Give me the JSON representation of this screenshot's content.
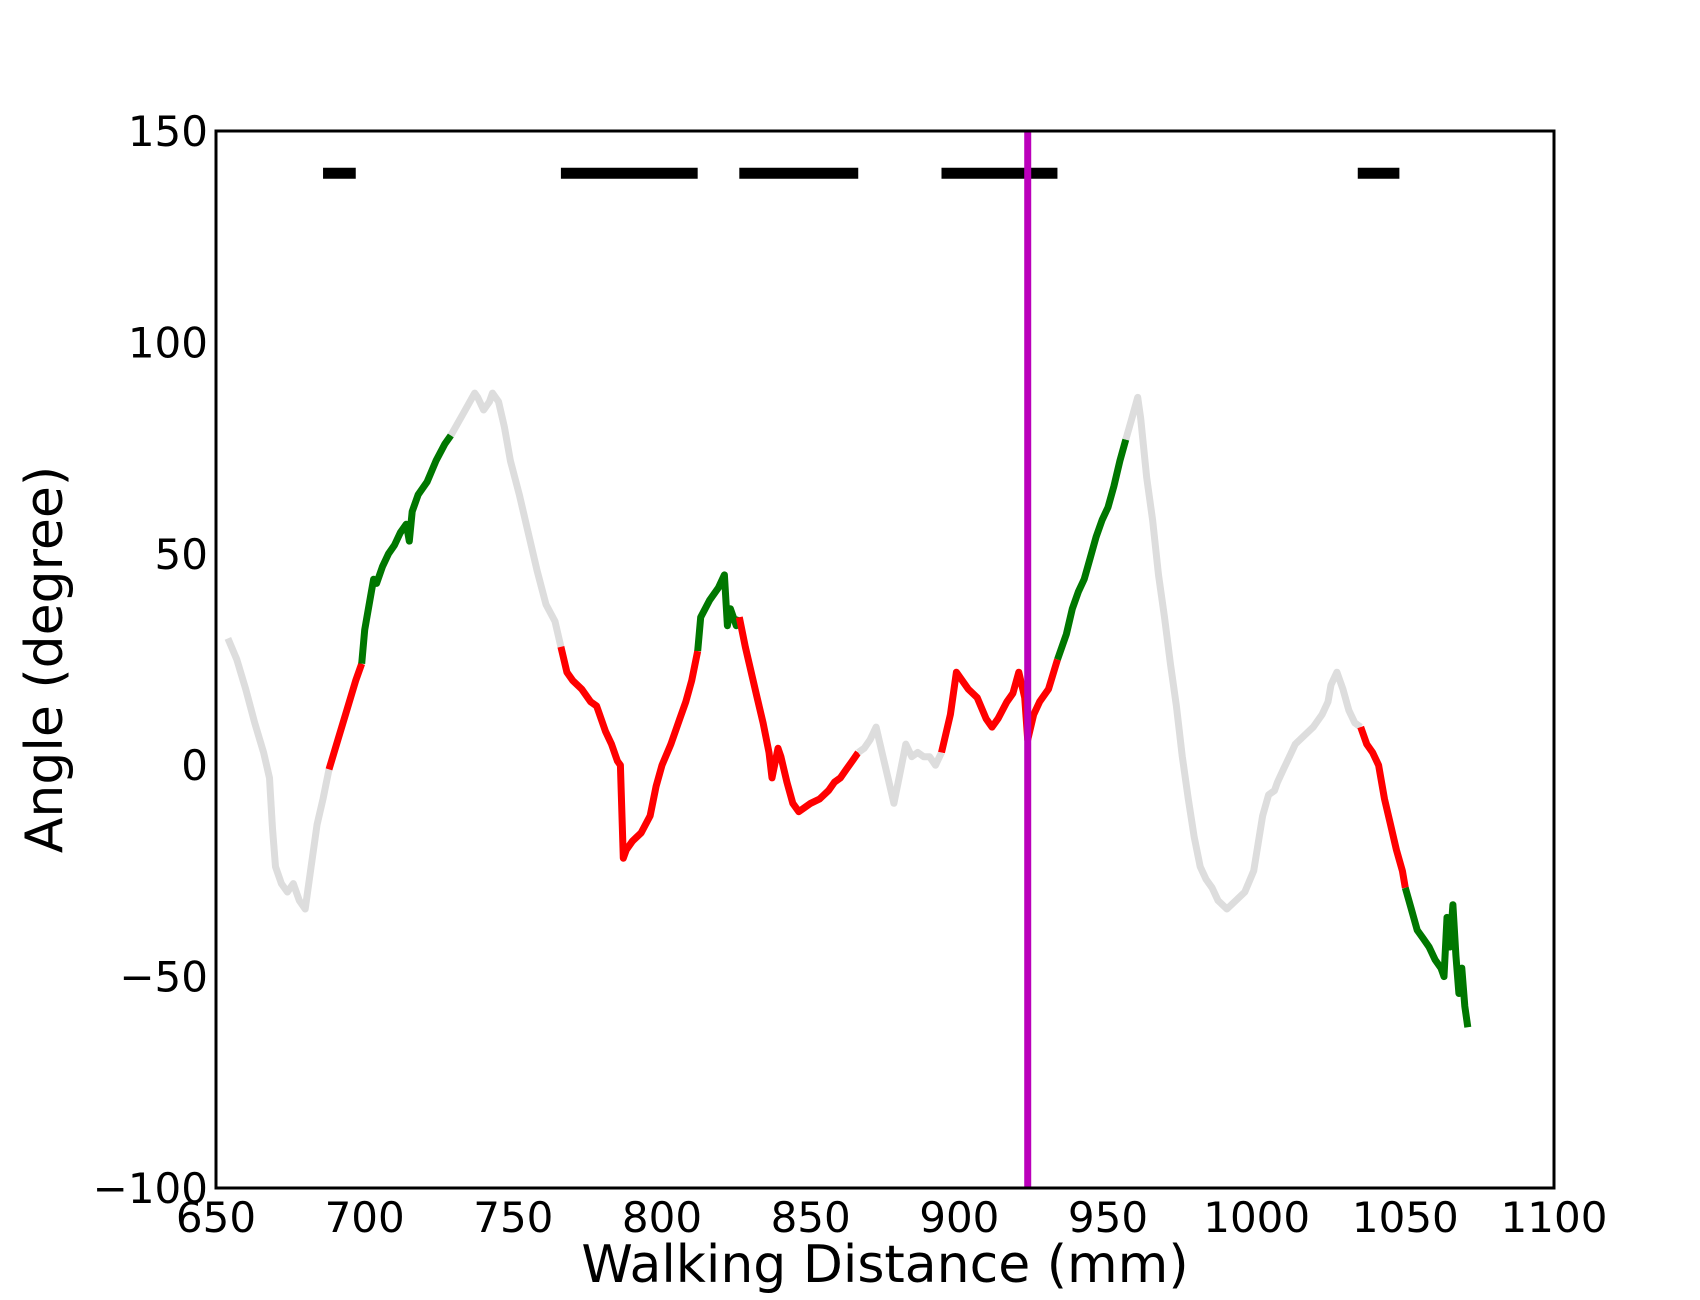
{
  "chart_data": {
    "type": "line",
    "title": "",
    "xlabel": "Walking Distance (mm)",
    "ylabel": "Angle (degree)",
    "xlim": [
      650,
      1100
    ],
    "ylim": [
      -100,
      150
    ],
    "xticks": [
      650,
      700,
      750,
      800,
      850,
      900,
      950,
      1000,
      1050,
      1100
    ],
    "xtick_labels": [
      "650",
      "700",
      "750",
      "800",
      "850",
      "900",
      "950",
      "1000",
      "1050",
      "1100"
    ],
    "yticks": [
      150,
      100,
      50,
      0,
      -50,
      -100
    ],
    "ytick_labels": [
      "150",
      "100",
      "50",
      "0",
      "−50",
      "−100"
    ],
    "grid": false,
    "legend": false,
    "colors": {
      "gray": "#dddddd",
      "red": "#ff0000",
      "green": "#007700",
      "marker": "#bb00bb",
      "bar": "#000000"
    },
    "vertical_marker_x": 923,
    "bars_y": 140,
    "bars": [
      [
        686,
        697
      ],
      [
        766,
        812
      ],
      [
        826,
        866
      ],
      [
        894,
        933
      ],
      [
        1034,
        1048
      ]
    ],
    "series": [
      {
        "color": "gray",
        "x": [
          654,
          657,
          660,
          663,
          666,
          668,
          669,
          670,
          672,
          674,
          676,
          678,
          680,
          682,
          684,
          686,
          688
        ],
        "y": [
          30,
          25,
          18,
          10,
          3,
          -3,
          -15,
          -24,
          -28,
          -30,
          -28,
          -32,
          -34,
          -24,
          -14,
          -8,
          -1
        ]
      },
      {
        "color": "red",
        "x": [
          688,
          691,
          694,
          697,
          699
        ],
        "y": [
          -1,
          6,
          13,
          20,
          24
        ]
      },
      {
        "color": "green",
        "x": [
          699,
          700,
          702,
          703,
          704,
          706,
          708,
          710,
          712,
          714,
          715,
          716,
          718,
          721,
          724,
          727,
          729
        ],
        "y": [
          24,
          32,
          40,
          44,
          43,
          47,
          50,
          52,
          55,
          57,
          53,
          60,
          64,
          67,
          72,
          76,
          78
        ]
      },
      {
        "color": "gray",
        "x": [
          729,
          733,
          737,
          738,
          740,
          742,
          743,
          745,
          747,
          749,
          752,
          755,
          758,
          761,
          764,
          766
        ],
        "y": [
          78,
          83,
          88,
          87,
          84,
          86,
          88,
          86,
          80,
          72,
          64,
          55,
          46,
          38,
          34,
          28
        ]
      },
      {
        "color": "red",
        "x": [
          766,
          768,
          770,
          773,
          776,
          778,
          779,
          781,
          783,
          785,
          786,
          787,
          788,
          790,
          793,
          796,
          798,
          800,
          803,
          806,
          808,
          810,
          812
        ],
        "y": [
          28,
          22,
          20,
          18,
          15,
          14,
          12,
          8,
          5,
          1,
          0,
          -22,
          -20,
          -18,
          -16,
          -12,
          -5,
          0,
          5,
          11,
          15,
          20,
          27
        ]
      },
      {
        "color": "green",
        "x": [
          812,
          813,
          816,
          819,
          821,
          822,
          823,
          825,
          826
        ],
        "y": [
          27,
          35,
          39,
          42,
          45,
          33,
          37,
          33,
          35
        ]
      },
      {
        "color": "red",
        "x": [
          826,
          828,
          830,
          832,
          834,
          836,
          837,
          839,
          840,
          842,
          844,
          846,
          848,
          850,
          853,
          856,
          858,
          860,
          862,
          864,
          866
        ],
        "y": [
          35,
          28,
          22,
          16,
          10,
          3,
          -3,
          4,
          2,
          -4,
          -9,
          -11,
          -10,
          -9,
          -8,
          -6,
          -4,
          -3,
          -1,
          1,
          3
        ]
      },
      {
        "color": "gray",
        "x": [
          866,
          868,
          870,
          872,
          874,
          876,
          878,
          880,
          882,
          884,
          886,
          888,
          890,
          892,
          894
        ],
        "y": [
          3,
          4,
          6,
          9,
          3,
          -3,
          -9,
          -2,
          5,
          2,
          3,
          2,
          2,
          0,
          3
        ]
      },
      {
        "color": "red",
        "x": [
          894,
          897,
          899,
          901,
          903,
          906,
          909,
          911,
          913,
          916,
          918,
          920,
          922,
          923,
          925,
          927,
          930,
          933
        ],
        "y": [
          3,
          12,
          22,
          20,
          18,
          16,
          11,
          9,
          11,
          15,
          17,
          22,
          16,
          6,
          12,
          15,
          18,
          25
        ]
      },
      {
        "color": "green",
        "x": [
          933,
          936,
          938,
          940,
          942,
          944,
          946,
          948,
          950,
          952,
          954,
          956
        ],
        "y": [
          25,
          31,
          37,
          41,
          44,
          49,
          54,
          58,
          61,
          66,
          72,
          77
        ]
      },
      {
        "color": "gray",
        "x": [
          956,
          958,
          960,
          961,
          962,
          963,
          965,
          967,
          969,
          971,
          973,
          975,
          977,
          979,
          981,
          983,
          985,
          987,
          990,
          993,
          996,
          999,
          1002,
          1004,
          1006,
          1007,
          1009,
          1011,
          1013,
          1016,
          1019,
          1022,
          1024,
          1025,
          1027,
          1029,
          1031,
          1033,
          1035
        ],
        "y": [
          77,
          82,
          87,
          82,
          75,
          68,
          58,
          45,
          35,
          24,
          14,
          2,
          -8,
          -17,
          -24,
          -27,
          -29,
          -32,
          -34,
          -32,
          -30,
          -25,
          -12,
          -7,
          -6,
          -4,
          -1,
          2,
          5,
          7,
          9,
          12,
          15,
          19,
          22,
          18,
          13,
          10,
          9
        ]
      },
      {
        "color": "red",
        "x": [
          1035,
          1037,
          1039,
          1041,
          1043,
          1045,
          1047,
          1049,
          1050
        ],
        "y": [
          9,
          5,
          3,
          0,
          -8,
          -14,
          -20,
          -25,
          -29
        ]
      },
      {
        "color": "green",
        "x": [
          1050,
          1052,
          1054,
          1056,
          1058,
          1060,
          1062,
          1063,
          1064,
          1065,
          1066,
          1067,
          1068,
          1069,
          1070,
          1071
        ],
        "y": [
          -29,
          -34,
          -39,
          -41,
          -43,
          -46,
          -48,
          -50,
          -36,
          -43,
          -33,
          -45,
          -54,
          -48,
          -57,
          -62
        ]
      }
    ]
  }
}
